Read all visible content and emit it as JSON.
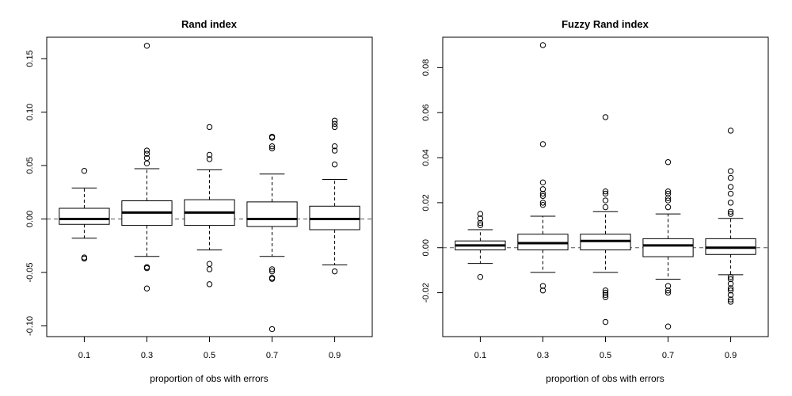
{
  "chart_data": [
    {
      "type": "boxplot",
      "title": "Rand index",
      "xlabel": "proportion of obs with errors",
      "ylabel": "",
      "categories": [
        "0.1",
        "0.3",
        "0.5",
        "0.7",
        "0.9"
      ],
      "ylim": [
        -0.11,
        0.17
      ],
      "yticks": [
        -0.1,
        -0.05,
        0.0,
        0.05,
        0.1,
        0.15
      ],
      "ytick_labels": [
        "-0.10",
        "-0.05",
        "0.00",
        "0.05",
        "0.10",
        "0.15"
      ],
      "reference_line": 0.0,
      "grid": false,
      "boxes": [
        {
          "whisker_low": -0.018,
          "q1": -0.005,
          "median": 0.0,
          "q3": 0.01,
          "whisker_high": 0.029,
          "outliers": [
            0.045,
            -0.036,
            -0.037
          ]
        },
        {
          "whisker_low": -0.035,
          "q1": -0.006,
          "median": 0.006,
          "q3": 0.017,
          "whisker_high": 0.047,
          "outliers": [
            0.162,
            0.064,
            0.061,
            0.057,
            0.052,
            -0.045,
            -0.046,
            -0.065
          ]
        },
        {
          "whisker_low": -0.029,
          "q1": -0.006,
          "median": 0.006,
          "q3": 0.018,
          "whisker_high": 0.046,
          "outliers": [
            0.086,
            0.06,
            0.056,
            -0.042,
            -0.047,
            -0.061
          ]
        },
        {
          "whisker_low": -0.035,
          "q1": -0.007,
          "median": 0.0,
          "q3": 0.016,
          "whisker_high": 0.042,
          "outliers": [
            0.077,
            0.076,
            0.068,
            0.066,
            -0.047,
            -0.049,
            -0.055,
            -0.056,
            -0.103
          ]
        },
        {
          "whisker_low": -0.043,
          "q1": -0.01,
          "median": 0.0,
          "q3": 0.012,
          "whisker_high": 0.037,
          "outliers": [
            0.092,
            0.089,
            0.086,
            0.068,
            0.064,
            0.051,
            -0.049
          ]
        }
      ]
    },
    {
      "type": "boxplot",
      "title": "Fuzzy Rand index",
      "xlabel": "proportion of obs with errors",
      "ylabel": "",
      "categories": [
        "0.1",
        "0.3",
        "0.5",
        "0.7",
        "0.9"
      ],
      "ylim": [
        -0.0395,
        0.0935
      ],
      "yticks": [
        -0.02,
        0.0,
        0.02,
        0.04,
        0.06,
        0.08
      ],
      "ytick_labels": [
        "-0.02",
        "0.00",
        "0.02",
        "0.04",
        "0.06",
        "0.08"
      ],
      "reference_line": 0.0,
      "grid": false,
      "boxes": [
        {
          "whisker_low": -0.007,
          "q1": -0.001,
          "median": 0.001,
          "q3": 0.003,
          "whisker_high": 0.008,
          "outliers": [
            0.015,
            0.013,
            0.011,
            0.01,
            -0.013
          ]
        },
        {
          "whisker_low": -0.011,
          "q1": -0.001,
          "median": 0.002,
          "q3": 0.006,
          "whisker_high": 0.014,
          "outliers": [
            0.09,
            0.046,
            0.029,
            0.026,
            0.024,
            0.023,
            0.02,
            0.019,
            -0.017,
            -0.019
          ]
        },
        {
          "whisker_low": -0.011,
          "q1": -0.001,
          "median": 0.003,
          "q3": 0.006,
          "whisker_high": 0.016,
          "outliers": [
            0.058,
            0.025,
            0.024,
            0.021,
            0.018,
            -0.019,
            -0.02,
            -0.021,
            -0.022,
            -0.033
          ]
        },
        {
          "whisker_low": -0.014,
          "q1": -0.004,
          "median": 0.001,
          "q3": 0.004,
          "whisker_high": 0.015,
          "outliers": [
            0.038,
            0.025,
            0.024,
            0.022,
            0.021,
            0.018,
            -0.017,
            -0.019,
            -0.02,
            -0.035
          ]
        },
        {
          "whisker_low": -0.012,
          "q1": -0.003,
          "median": 0.0,
          "q3": 0.004,
          "whisker_high": 0.013,
          "outliers": [
            0.052,
            0.034,
            0.031,
            0.027,
            0.024,
            0.02,
            0.016,
            0.015,
            -0.013,
            -0.014,
            -0.016,
            -0.018,
            -0.019,
            -0.021,
            -0.023,
            -0.024
          ]
        }
      ]
    }
  ]
}
